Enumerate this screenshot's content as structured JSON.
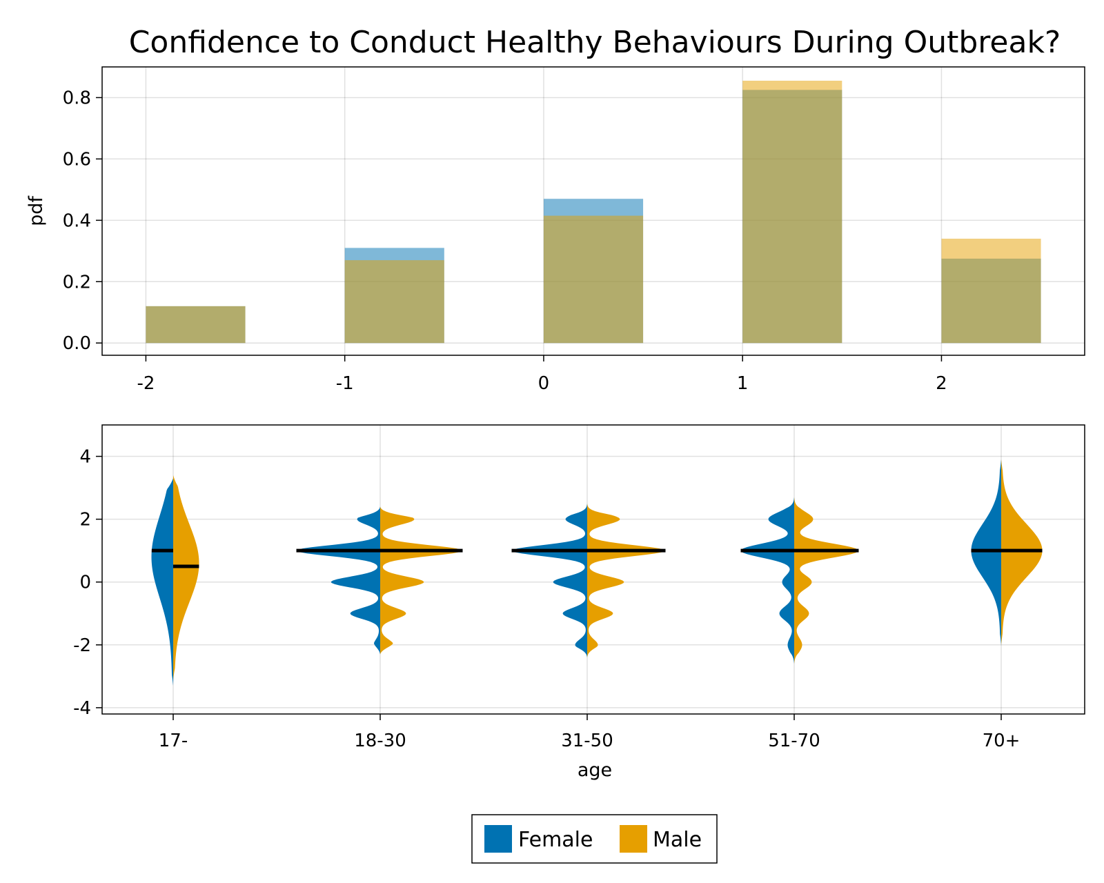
{
  "chart_data": [
    {
      "type": "bar",
      "title": "Confidence to Conduct Healthy Behaviours During Outbreak?",
      "xlabel": "",
      "ylabel": "pdf",
      "x_ticks": [
        "-2",
        "-1",
        "0",
        "1",
        "2"
      ],
      "y_ticks": [
        "0.0",
        "0.2",
        "0.4",
        "0.6",
        "0.8"
      ],
      "xlim": [
        -2.22,
        2.72
      ],
      "ylim": [
        -0.04,
        0.9
      ],
      "grid": true,
      "bar_width": 0.5,
      "categories": [
        -2,
        -1,
        0,
        1,
        2
      ],
      "series": [
        {
          "name": "Female",
          "color": "#0072B2",
          "values": [
            0.12,
            0.31,
            0.47,
            0.825,
            0.275
          ]
        },
        {
          "name": "Male",
          "color": "#E69F00",
          "values": [
            0.12,
            0.27,
            0.415,
            0.855,
            0.34
          ]
        }
      ]
    },
    {
      "type": "violin",
      "xlabel": "age",
      "ylabel": "",
      "categories": [
        "17-",
        "18-30",
        "31-50",
        "51-70",
        "70+"
      ],
      "y_ticks": [
        "-4",
        "-2",
        "0",
        "2",
        "4"
      ],
      "ylim": [
        -4.2,
        5.0
      ],
      "grid": true,
      "split": true,
      "series": [
        {
          "name": "Female",
          "color": "#0072B2",
          "side": "left",
          "medians": [
            1,
            1,
            1,
            1,
            1
          ]
        },
        {
          "name": "Male",
          "color": "#E69F00",
          "side": "right",
          "medians": [
            0.5,
            1,
            1,
            1,
            1
          ]
        }
      ]
    }
  ],
  "legend": {
    "placement": "bottom-center",
    "items": [
      {
        "label": "Female",
        "color": "#0072B2"
      },
      {
        "label": "Male",
        "color": "#E69F00"
      }
    ]
  }
}
